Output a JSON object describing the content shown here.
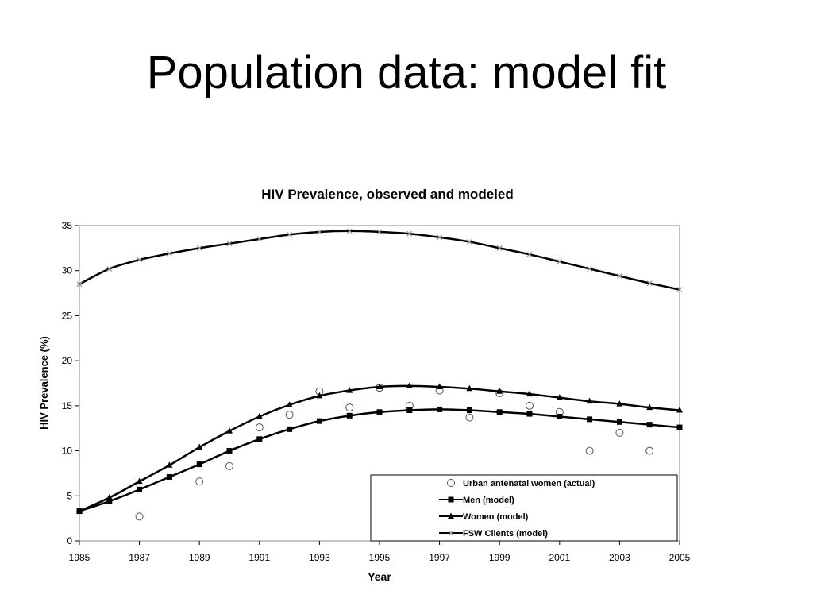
{
  "slide": {
    "title": "Population data: model fit"
  },
  "chart_data": {
    "type": "line",
    "title": "HIV Prevalence, observed and modeled",
    "xlabel": "Year",
    "ylabel": "HIV Prevalence (%)",
    "xlim": [
      1985,
      2005
    ],
    "ylim": [
      0,
      35
    ],
    "xticks": [
      "1985",
      "1987",
      "1989",
      "1991",
      "1993",
      "1995",
      "1997",
      "1999",
      "2001",
      "2003",
      "2005"
    ],
    "yticks": [
      "0",
      "5",
      "10",
      "15",
      "20",
      "25",
      "30",
      "35"
    ],
    "grid": false,
    "legend_position": "bottom-right",
    "series": [
      {
        "name": "Urban antenatal women (actual)",
        "marker": "circle",
        "line": false,
        "color": "#555555",
        "x": [
          1987,
          1989,
          1990,
          1991,
          1992,
          1993,
          1994,
          1995,
          1996,
          1997,
          1998,
          1999,
          2000,
          2001,
          2002,
          2003,
          2004
        ],
        "y": [
          2.7,
          6.6,
          8.3,
          12.6,
          14.0,
          16.6,
          14.8,
          17.0,
          15.0,
          16.7,
          13.7,
          16.4,
          15.0,
          14.3,
          10.0,
          12.0,
          10.0
        ]
      },
      {
        "name": "Men (model)",
        "marker": "square",
        "line": true,
        "color": "#000000",
        "x": [
          1985,
          1986,
          1987,
          1988,
          1989,
          1990,
          1991,
          1992,
          1993,
          1994,
          1995,
          1996,
          1997,
          1998,
          1999,
          2000,
          2001,
          2002,
          2003,
          2004,
          2005
        ],
        "y": [
          3.3,
          4.4,
          5.7,
          7.1,
          8.5,
          10.0,
          11.3,
          12.4,
          13.3,
          13.9,
          14.3,
          14.5,
          14.6,
          14.5,
          14.3,
          14.1,
          13.8,
          13.5,
          13.2,
          12.9,
          12.6
        ]
      },
      {
        "name": "Women (model)",
        "marker": "triangle",
        "line": true,
        "color": "#000000",
        "x": [
          1985,
          1986,
          1987,
          1988,
          1989,
          1990,
          1991,
          1992,
          1993,
          1994,
          1995,
          1996,
          1997,
          1998,
          1999,
          2000,
          2001,
          2002,
          2003,
          2004,
          2005
        ],
        "y": [
          3.3,
          4.8,
          6.6,
          8.4,
          10.4,
          12.2,
          13.8,
          15.1,
          16.1,
          16.7,
          17.1,
          17.2,
          17.1,
          16.9,
          16.6,
          16.3,
          15.9,
          15.5,
          15.2,
          14.8,
          14.5
        ]
      },
      {
        "name": "FSW Clients (model)",
        "marker": "x",
        "line": true,
        "color": "#000000",
        "x": [
          1985,
          1986,
          1987,
          1988,
          1989,
          1990,
          1991,
          1992,
          1993,
          1994,
          1995,
          1996,
          1997,
          1998,
          1999,
          2000,
          2001,
          2002,
          2003,
          2004,
          2005
        ],
        "y": [
          28.5,
          30.2,
          31.2,
          31.9,
          32.5,
          33.0,
          33.5,
          34.0,
          34.3,
          34.4,
          34.3,
          34.1,
          33.7,
          33.2,
          32.5,
          31.8,
          31.0,
          30.2,
          29.4,
          28.6,
          27.9
        ]
      }
    ]
  }
}
